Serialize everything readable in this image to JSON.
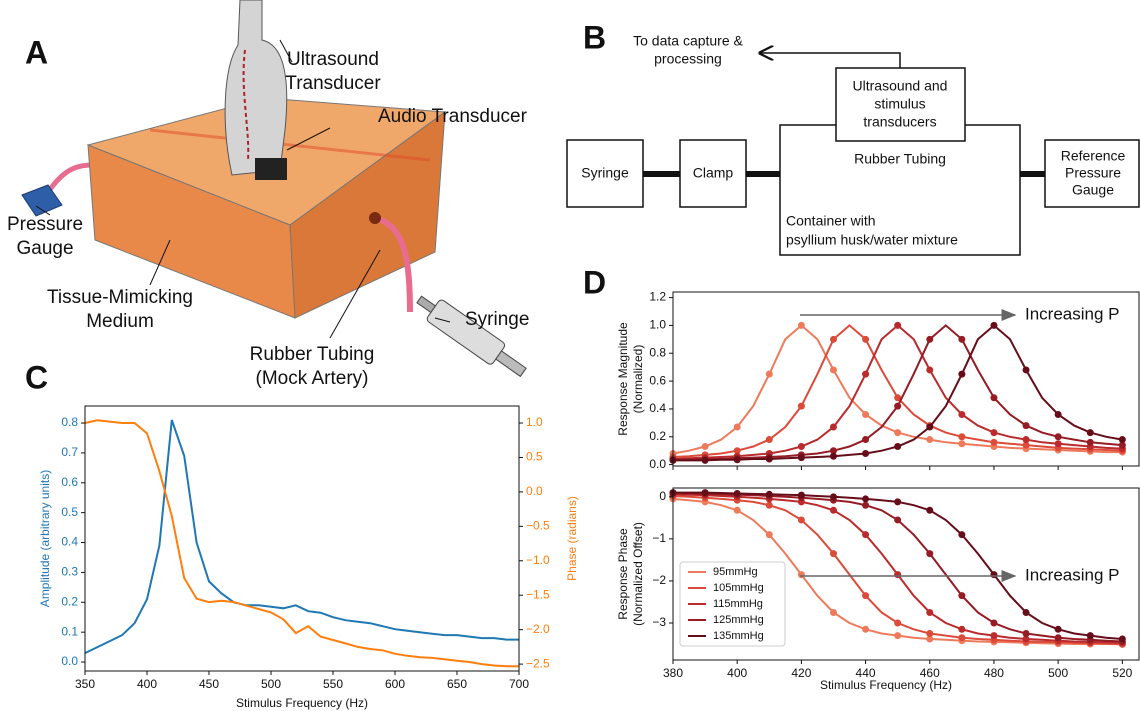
{
  "panel_a": {
    "label": "A",
    "labels": [
      {
        "lines": [
          "Ultrasound",
          "Transducer"
        ]
      },
      {
        "lines": [
          "Audio Transducer"
        ]
      },
      {
        "lines": [
          "Pressure",
          "Gauge"
        ]
      },
      {
        "lines": [
          "Tissue-Mimicking",
          "Medium"
        ]
      },
      {
        "lines": [
          "Rubber Tubing",
          "(Mock Artery)"
        ]
      },
      {
        "lines": [
          "Syringe"
        ]
      }
    ]
  },
  "panel_b": {
    "label": "B",
    "nodes": [
      {
        "lines": [
          "To data capture &",
          "processing"
        ]
      },
      {
        "lines": [
          "Ultrasound and",
          "stimulus",
          "transducers"
        ]
      },
      {
        "lines": [
          "Syringe"
        ]
      },
      {
        "lines": [
          "Clamp"
        ]
      },
      {
        "lines": [
          "Rubber Tubing"
        ]
      },
      {
        "lines": [
          "Container with",
          "psyllium husk/water mixture"
        ]
      },
      {
        "lines": [
          "Reference",
          "Pressure",
          "Gauge"
        ]
      }
    ]
  },
  "chart_data": [
    {
      "type": "line",
      "label": "C",
      "xlabel": "Stimulus Frequency (Hz)",
      "ylabel": "Amplitude (arbitrary units)",
      "y2label": "Phase (radians)",
      "x": [
        350,
        360,
        370,
        380,
        390,
        400,
        410,
        420,
        430,
        440,
        450,
        460,
        470,
        480,
        490,
        500,
        510,
        520,
        530,
        540,
        550,
        560,
        570,
        580,
        590,
        600,
        610,
        620,
        630,
        640,
        650,
        660,
        670,
        680,
        690,
        700
      ],
      "xlim": [
        350,
        700
      ],
      "xticks": [
        350,
        400,
        450,
        500,
        550,
        600,
        650,
        700
      ],
      "ylim": [
        -0.03,
        0.857
      ],
      "yticks": [
        {
          "value": 0,
          "label": "0.0"
        },
        0.1,
        0.2,
        0.3,
        0.4,
        0.5,
        0.6,
        0.7,
        0.8
      ],
      "y2lim": [
        -2.6,
        1.247
      ],
      "y2ticks": [
        {
          "value": 1,
          "label": "1.0"
        },
        0.5,
        {
          "value": 0,
          "label": "0.0"
        },
        {
          "value": -0.5,
          "label": "−0.5"
        },
        {
          "value": -1,
          "label": "−1.0"
        },
        {
          "value": -1.5,
          "label": "−1.5"
        },
        {
          "value": -2,
          "label": "−2.0"
        },
        {
          "value": -2.5,
          "label": "−2.5"
        }
      ],
      "series": [
        {
          "color": "#1f77b4",
          "values": [
            0.03,
            0.05,
            0.07,
            0.09,
            0.13,
            0.21,
            0.39,
            0.81,
            0.69,
            0.4,
            0.27,
            0.23,
            0.2,
            0.19,
            0.19,
            0.185,
            0.18,
            0.19,
            0.17,
            0.165,
            0.15,
            0.14,
            0.135,
            0.13,
            0.12,
            0.11,
            0.105,
            0.1,
            0.095,
            0.09,
            0.09,
            0.085,
            0.08,
            0.08,
            0.075,
            0.075
          ]
        },
        {
          "color": "#ff7f0e",
          "axis": "y2",
          "values": [
            1.0,
            1.04,
            1.02,
            1.0,
            1.0,
            0.85,
            0.3,
            -0.35,
            -1.25,
            -1.55,
            -1.6,
            -1.58,
            -1.6,
            -1.65,
            -1.7,
            -1.75,
            -1.85,
            -2.05,
            -1.95,
            -2.1,
            -2.15,
            -2.2,
            -2.25,
            -2.28,
            -2.3,
            -2.35,
            -2.38,
            -2.4,
            -2.41,
            -2.43,
            -2.45,
            -2.47,
            -2.5,
            -2.52,
            -2.53,
            -2.53
          ]
        }
      ]
    },
    {
      "type": "line",
      "label": "D",
      "xlabel": "Stimulus Frequency (Hz)",
      "x": [
        380,
        385,
        390,
        395,
        400,
        405,
        410,
        415,
        420,
        425,
        430,
        435,
        440,
        445,
        450,
        455,
        460,
        465,
        470,
        475,
        480,
        485,
        490,
        495,
        500,
        505,
        510,
        515,
        520
      ],
      "xlim": [
        380,
        525.5
      ],
      "xticks": [
        380,
        400,
        420,
        440,
        460,
        480,
        500,
        520
      ],
      "subplots": [
        {
          "ylabel": [
            "Response Magnitude",
            "(Normalized)"
          ],
          "annotation": "Increasing P",
          "ylim": [
            -0.01,
            1.24
          ],
          "yticks": [
            {
              "value": 0,
              "label": "0.0"
            },
            0.2,
            0.4,
            0.6,
            0.8,
            {
              "value": 1,
              "label": "1.0"
            },
            1.2
          ],
          "series": [
            {
              "color": "#ee7a5c",
              "values": [
                0.08,
                0.1,
                0.13,
                0.18,
                0.27,
                0.42,
                0.65,
                0.9,
                1.0,
                0.9,
                0.68,
                0.48,
                0.36,
                0.28,
                0.23,
                0.2,
                0.18,
                0.16,
                0.15,
                0.14,
                0.13,
                0.12,
                0.115,
                0.11,
                0.105,
                0.1,
                0.095,
                0.09,
                0.09
              ]
            },
            {
              "color": "#dc4a3a",
              "values": [
                0.055,
                0.06,
                0.07,
                0.08,
                0.1,
                0.13,
                0.18,
                0.27,
                0.42,
                0.65,
                0.9,
                1.0,
                0.9,
                0.68,
                0.48,
                0.36,
                0.28,
                0.23,
                0.2,
                0.18,
                0.16,
                0.15,
                0.14,
                0.13,
                0.12,
                0.115,
                0.11,
                0.105,
                0.1
              ]
            },
            {
              "color": "#bb2a2c",
              "values": [
                0.04,
                0.045,
                0.05,
                0.055,
                0.06,
                0.07,
                0.08,
                0.1,
                0.13,
                0.18,
                0.27,
                0.42,
                0.65,
                0.9,
                1.0,
                0.9,
                0.68,
                0.48,
                0.36,
                0.28,
                0.23,
                0.2,
                0.18,
                0.16,
                0.15,
                0.14,
                0.13,
                0.12,
                0.115
              ]
            },
            {
              "color": "#951b24",
              "values": [
                0.035,
                0.035,
                0.04,
                0.04,
                0.045,
                0.05,
                0.055,
                0.06,
                0.07,
                0.08,
                0.1,
                0.13,
                0.18,
                0.27,
                0.42,
                0.65,
                0.9,
                1.0,
                0.9,
                0.68,
                0.48,
                0.36,
                0.28,
                0.23,
                0.2,
                0.18,
                0.16,
                0.15,
                0.14
              ]
            },
            {
              "color": "#660d1a",
              "values": [
                0.03,
                0.03,
                0.03,
                0.035,
                0.035,
                0.04,
                0.04,
                0.045,
                0.05,
                0.055,
                0.06,
                0.07,
                0.08,
                0.1,
                0.13,
                0.18,
                0.27,
                0.42,
                0.65,
                0.9,
                1.0,
                0.9,
                0.68,
                0.48,
                0.36,
                0.28,
                0.23,
                0.2,
                0.18
              ]
            }
          ]
        },
        {
          "ylabel": [
            "Response Phase",
            "(Normalized Offset)"
          ],
          "annotation": "Increasing P",
          "legend": "lower left",
          "ylim": [
            -3.88,
            0.21
          ],
          "yticks": [
            0,
            {
              "value": -1,
              "label": "−1"
            },
            {
              "value": -2,
              "label": "−2"
            },
            {
              "value": -3,
              "label": "−3"
            }
          ],
          "series": [
            {
              "name": "95mmHg",
              "color": "#ee7a5c",
              "values": [
                -0.05,
                -0.08,
                -0.12,
                -0.2,
                -0.32,
                -0.55,
                -0.9,
                -1.35,
                -1.85,
                -2.35,
                -2.75,
                -3.0,
                -3.15,
                -3.25,
                -3.3,
                -3.35,
                -3.38,
                -3.4,
                -3.42,
                -3.44,
                -3.45,
                -3.46,
                -3.47,
                -3.48,
                -3.49,
                -3.5,
                -3.5,
                -3.5,
                -3.51
              ]
            },
            {
              "name": "105mmHg",
              "color": "#dc4a3a",
              "values": [
                0.02,
                0.0,
                -0.02,
                -0.05,
                -0.08,
                -0.12,
                -0.2,
                -0.32,
                -0.55,
                -0.9,
                -1.35,
                -1.85,
                -2.35,
                -2.75,
                -3.0,
                -3.15,
                -3.25,
                -3.3,
                -3.35,
                -3.38,
                -3.4,
                -3.42,
                -3.44,
                -3.45,
                -3.46,
                -3.47,
                -3.48,
                -3.49,
                -3.5
              ]
            },
            {
              "name": "115mmHg",
              "color": "#bb2a2c",
              "values": [
                0.06,
                0.05,
                0.04,
                0.02,
                0.0,
                -0.02,
                -0.05,
                -0.08,
                -0.12,
                -0.2,
                -0.32,
                -0.55,
                -0.9,
                -1.35,
                -1.85,
                -2.35,
                -2.75,
                -3.0,
                -3.15,
                -3.25,
                -3.3,
                -3.35,
                -3.38,
                -3.4,
                -3.42,
                -3.44,
                -3.45,
                -3.46,
                -3.47
              ]
            },
            {
              "name": "125mmHg",
              "color": "#951b24",
              "values": [
                0.09,
                0.08,
                0.07,
                0.06,
                0.05,
                0.04,
                0.02,
                0.0,
                -0.02,
                -0.05,
                -0.08,
                -0.12,
                -0.2,
                -0.32,
                -0.55,
                -0.9,
                -1.35,
                -1.85,
                -2.35,
                -2.75,
                -3.0,
                -3.15,
                -3.25,
                -3.3,
                -3.35,
                -3.38,
                -3.4,
                -3.42,
                -3.44
              ]
            },
            {
              "name": "135mmHg",
              "color": "#660d1a",
              "values": [
                0.1,
                0.1,
                0.1,
                0.09,
                0.08,
                0.07,
                0.06,
                0.05,
                0.04,
                0.02,
                0.0,
                -0.02,
                -0.05,
                -0.08,
                -0.12,
                -0.2,
                -0.32,
                -0.55,
                -0.9,
                -1.35,
                -1.85,
                -2.35,
                -2.75,
                -3.0,
                -3.15,
                -3.25,
                -3.3,
                -3.35,
                -3.38
              ]
            }
          ]
        }
      ]
    }
  ]
}
